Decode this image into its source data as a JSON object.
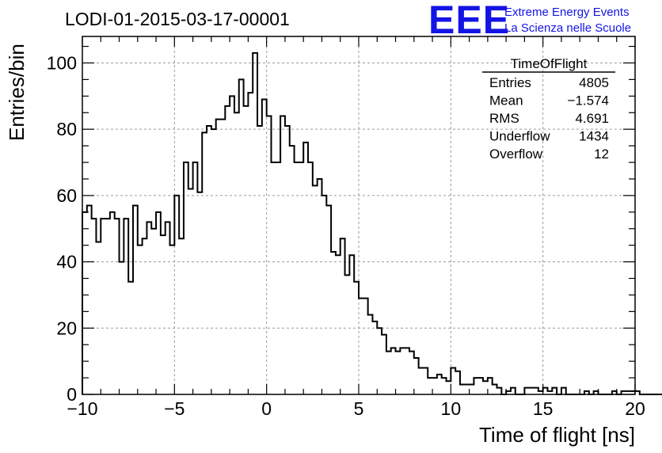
{
  "chart_data": {
    "type": "histogram",
    "title": "LODI-01-2015-03-17-00001",
    "xlabel": "Time of flight [ns]",
    "ylabel": "Entries/bin",
    "xlim": [
      -10,
      20
    ],
    "ylim": [
      0,
      108
    ],
    "x_ticks": [
      -10,
      -5,
      0,
      5,
      10,
      15,
      20
    ],
    "x_tick_labels": [
      "−10",
      "−5",
      "0",
      "5",
      "10",
      "15",
      "20"
    ],
    "y_ticks": [
      0,
      20,
      40,
      60,
      80,
      100
    ],
    "y_tick_labels": [
      "0",
      "20",
      "40",
      "60",
      "80",
      "100"
    ],
    "grid": true,
    "bin_width": 0.25,
    "bins_start": -10,
    "counts": [
      55,
      57,
      53,
      46,
      53,
      53,
      55,
      53,
      40,
      53,
      34,
      57,
      45,
      47,
      52,
      50,
      55,
      48,
      52,
      45,
      60,
      47,
      70,
      62,
      70,
      61,
      79,
      81,
      80,
      83,
      83,
      87,
      90,
      85,
      95,
      87,
      91,
      103,
      81,
      89,
      84,
      70,
      70,
      84,
      81,
      75,
      70,
      70,
      76,
      70,
      63,
      65,
      60,
      57,
      43,
      42,
      47,
      36,
      42,
      34,
      29,
      29,
      24,
      22,
      20,
      18,
      13,
      14,
      13,
      14,
      14,
      13,
      11,
      8,
      8,
      5,
      5,
      6,
      5,
      4,
      8,
      7,
      3,
      3,
      3,
      5,
      5,
      4,
      5,
      3,
      2,
      0,
      1,
      2,
      0,
      0,
      2,
      2,
      2,
      1,
      2,
      1,
      2,
      0,
      2,
      0,
      0,
      0,
      0,
      1,
      0,
      1,
      0,
      0,
      0,
      1,
      0,
      1,
      1,
      1,
      1,
      0,
      0,
      0,
      0,
      0,
      0,
      0,
      0,
      0
    ],
    "stats_box": {
      "title": "TimeOfFlight",
      "rows": [
        {
          "label": "Entries",
          "value": "4805"
        },
        {
          "label": "Mean",
          "value": "−1.574"
        },
        {
          "label": "RMS",
          "value": "4.691"
        },
        {
          "label": "Underflow",
          "value": "1434"
        },
        {
          "label": "Overflow",
          "value": "12"
        }
      ]
    },
    "logo": {
      "text": "EEE",
      "line1": "Extreme Energy Events",
      "line2": "La Scienza nelle Scuole",
      "color": "#1414e6"
    }
  }
}
